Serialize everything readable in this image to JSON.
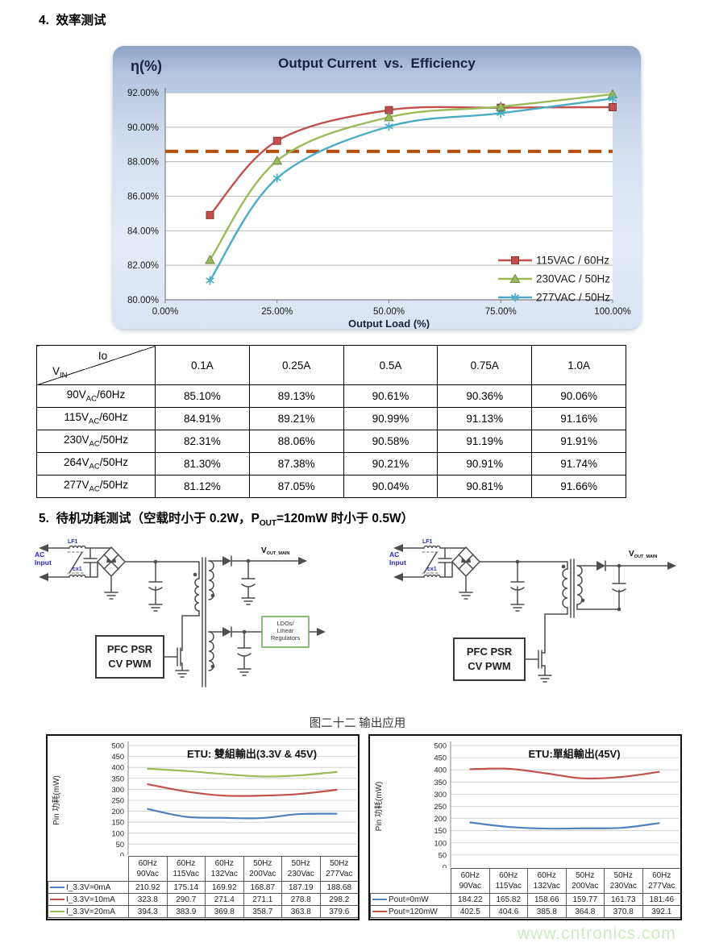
{
  "page": {
    "watermark": "www.cntronics.com"
  },
  "section4": {
    "title": "4.  效率测试"
  },
  "section5": {
    "title_pre": "5.  待机功耗测试（空载时小于 0.2W，P",
    "title_sub": "OUT",
    "title_post": "=120mW 时小于 0.5W）"
  },
  "chart_data": [
    {
      "type": "line",
      "title": "Output Current  vs.  Efficiency",
      "ylabel": "η(%)",
      "xlabel": "Output Load (%)",
      "x": [
        10,
        25,
        50,
        75,
        100
      ],
      "x_ticks": [
        0,
        25,
        50,
        75,
        100
      ],
      "x_tick_labels": [
        "0.00%",
        "25.00%",
        "50.00%",
        "75.00%",
        "100.00%"
      ],
      "ylim": [
        80,
        92
      ],
      "y_tick_step": 2,
      "y_tick_labels": [
        "80.00%",
        "82.00%",
        "84.00%",
        "86.00%",
        "88.00%",
        "90.00%",
        "92.00%"
      ],
      "grid": true,
      "legend_position": "bottom-right",
      "target_line": {
        "value": 88.6,
        "color": "#b5500f",
        "style": "dashed"
      },
      "series": [
        {
          "name": "115VAC / 60Hz",
          "marker": "square",
          "color": "#c0504d",
          "values": [
            84.91,
            89.21,
            90.99,
            91.13,
            91.16
          ]
        },
        {
          "name": "230VAC / 50Hz",
          "marker": "triangle",
          "color": "#9bbb59",
          "values": [
            82.31,
            88.06,
            90.58,
            91.19,
            91.91
          ]
        },
        {
          "name": "277VAC / 50Hz",
          "marker": "star",
          "color": "#4bacc6",
          "values": [
            81.12,
            87.05,
            90.04,
            90.81,
            91.66
          ]
        }
      ]
    },
    {
      "type": "line",
      "title": "ETU: 雙組輸出(3.3V & 45V)",
      "ylabel": "Pin 功耗(mW)",
      "categories": [
        [
          "60Hz",
          "90Vac"
        ],
        [
          "60Hz",
          "115Vac"
        ],
        [
          "60Hz",
          "132Vac"
        ],
        [
          "50Hz",
          "200Vac"
        ],
        [
          "50Hz",
          "230Vac"
        ],
        [
          "50Hz",
          "277Vac"
        ]
      ],
      "ylim": [
        0,
        500
      ],
      "y_tick_step": 50,
      "grid": true,
      "data_table": true,
      "series": [
        {
          "name": "I_3.3V=0mA",
          "color": "#4f81bd",
          "values": [
            "210.92",
            "175.14",
            "169.92",
            "168.87",
            "187.19",
            "188.68"
          ]
        },
        {
          "name": "I_3.3V=10mA",
          "color": "#c0504d",
          "values": [
            "323.8",
            "290.7",
            "271.4",
            "271.1",
            "278.8",
            "298.2"
          ]
        },
        {
          "name": "I_3.3V=20mA",
          "color": "#9bbb59",
          "values": [
            "394.3",
            "383.9",
            "369.8",
            "358.7",
            "363.8",
            "379.6"
          ]
        }
      ]
    },
    {
      "type": "line",
      "title": "ETU:單組輸出(45V)",
      "ylabel": "Pin 功耗(mW)",
      "categories": [
        [
          "60Hz",
          "90Vac"
        ],
        [
          "60Hz",
          "115Vac"
        ],
        [
          "60Hz",
          "132Vac"
        ],
        [
          "50Hz",
          "200Vac"
        ],
        [
          "50Hz",
          "230Vac"
        ],
        [
          "60Hz",
          "277Vac"
        ]
      ],
      "ylim": [
        0,
        500
      ],
      "y_tick_step": 50,
      "grid": true,
      "data_table": true,
      "series": [
        {
          "name": "Pout=0mW",
          "color": "#4f81bd",
          "values": [
            "184.22",
            "165.82",
            "158.66",
            "159.77",
            "161.73",
            "181.46"
          ]
        },
        {
          "name": "Pout=120mW",
          "color": "#c0504d",
          "values": [
            "402.5",
            "404.6",
            "385.8",
            "364.8",
            "370.8",
            "392.1"
          ]
        }
      ]
    }
  ],
  "efficiency_table": {
    "corner": {
      "top": "Io",
      "bottom_pre": "V",
      "bottom_sub": "IN"
    },
    "columns": [
      "0.1A",
      "0.25A",
      "0.5A",
      "0.75A",
      "1.0A"
    ],
    "rows": [
      {
        "label": {
          "pre": "90V",
          "sub": "AC",
          "post": "/60Hz"
        },
        "values": [
          "85.10%",
          "89.13%",
          "90.61%",
          "90.36%",
          "90.06%"
        ]
      },
      {
        "label": {
          "pre": "115V",
          "sub": "AC",
          "post": "/60Hz"
        },
        "values": [
          "84.91%",
          "89.21%",
          "90.99%",
          "91.13%",
          "91.16%"
        ]
      },
      {
        "label": {
          "pre": "230V",
          "sub": "AC",
          "post": "/50Hz"
        },
        "values": [
          "82.31%",
          "88.06%",
          "90.58%",
          "91.19%",
          "91.91%"
        ]
      },
      {
        "label": {
          "pre": "264V",
          "sub": "AC",
          "post": "/50Hz"
        },
        "values": [
          "81.30%",
          "87.38%",
          "90.21%",
          "90.91%",
          "91.74%"
        ]
      },
      {
        "label": {
          "pre": "277V",
          "sub": "AC",
          "post": "/50Hz"
        },
        "values": [
          "81.12%",
          "87.05%",
          "90.04%",
          "90.81%",
          "91.66%"
        ]
      }
    ]
  },
  "diagrams": {
    "caption": "图二十二 输出应用",
    "labels": {
      "ac1": "AC",
      "ac2": "Input",
      "lf1": "LF1",
      "cx1": "cx1",
      "pwm1": "PFC PSR",
      "pwm2": "CV PWM",
      "vout_pre": "V",
      "vout_sub": "OUT_MAIN",
      "ldo1": "LDOs/",
      "ldo2": "Linear",
      "ldo3": "Regulators"
    }
  }
}
